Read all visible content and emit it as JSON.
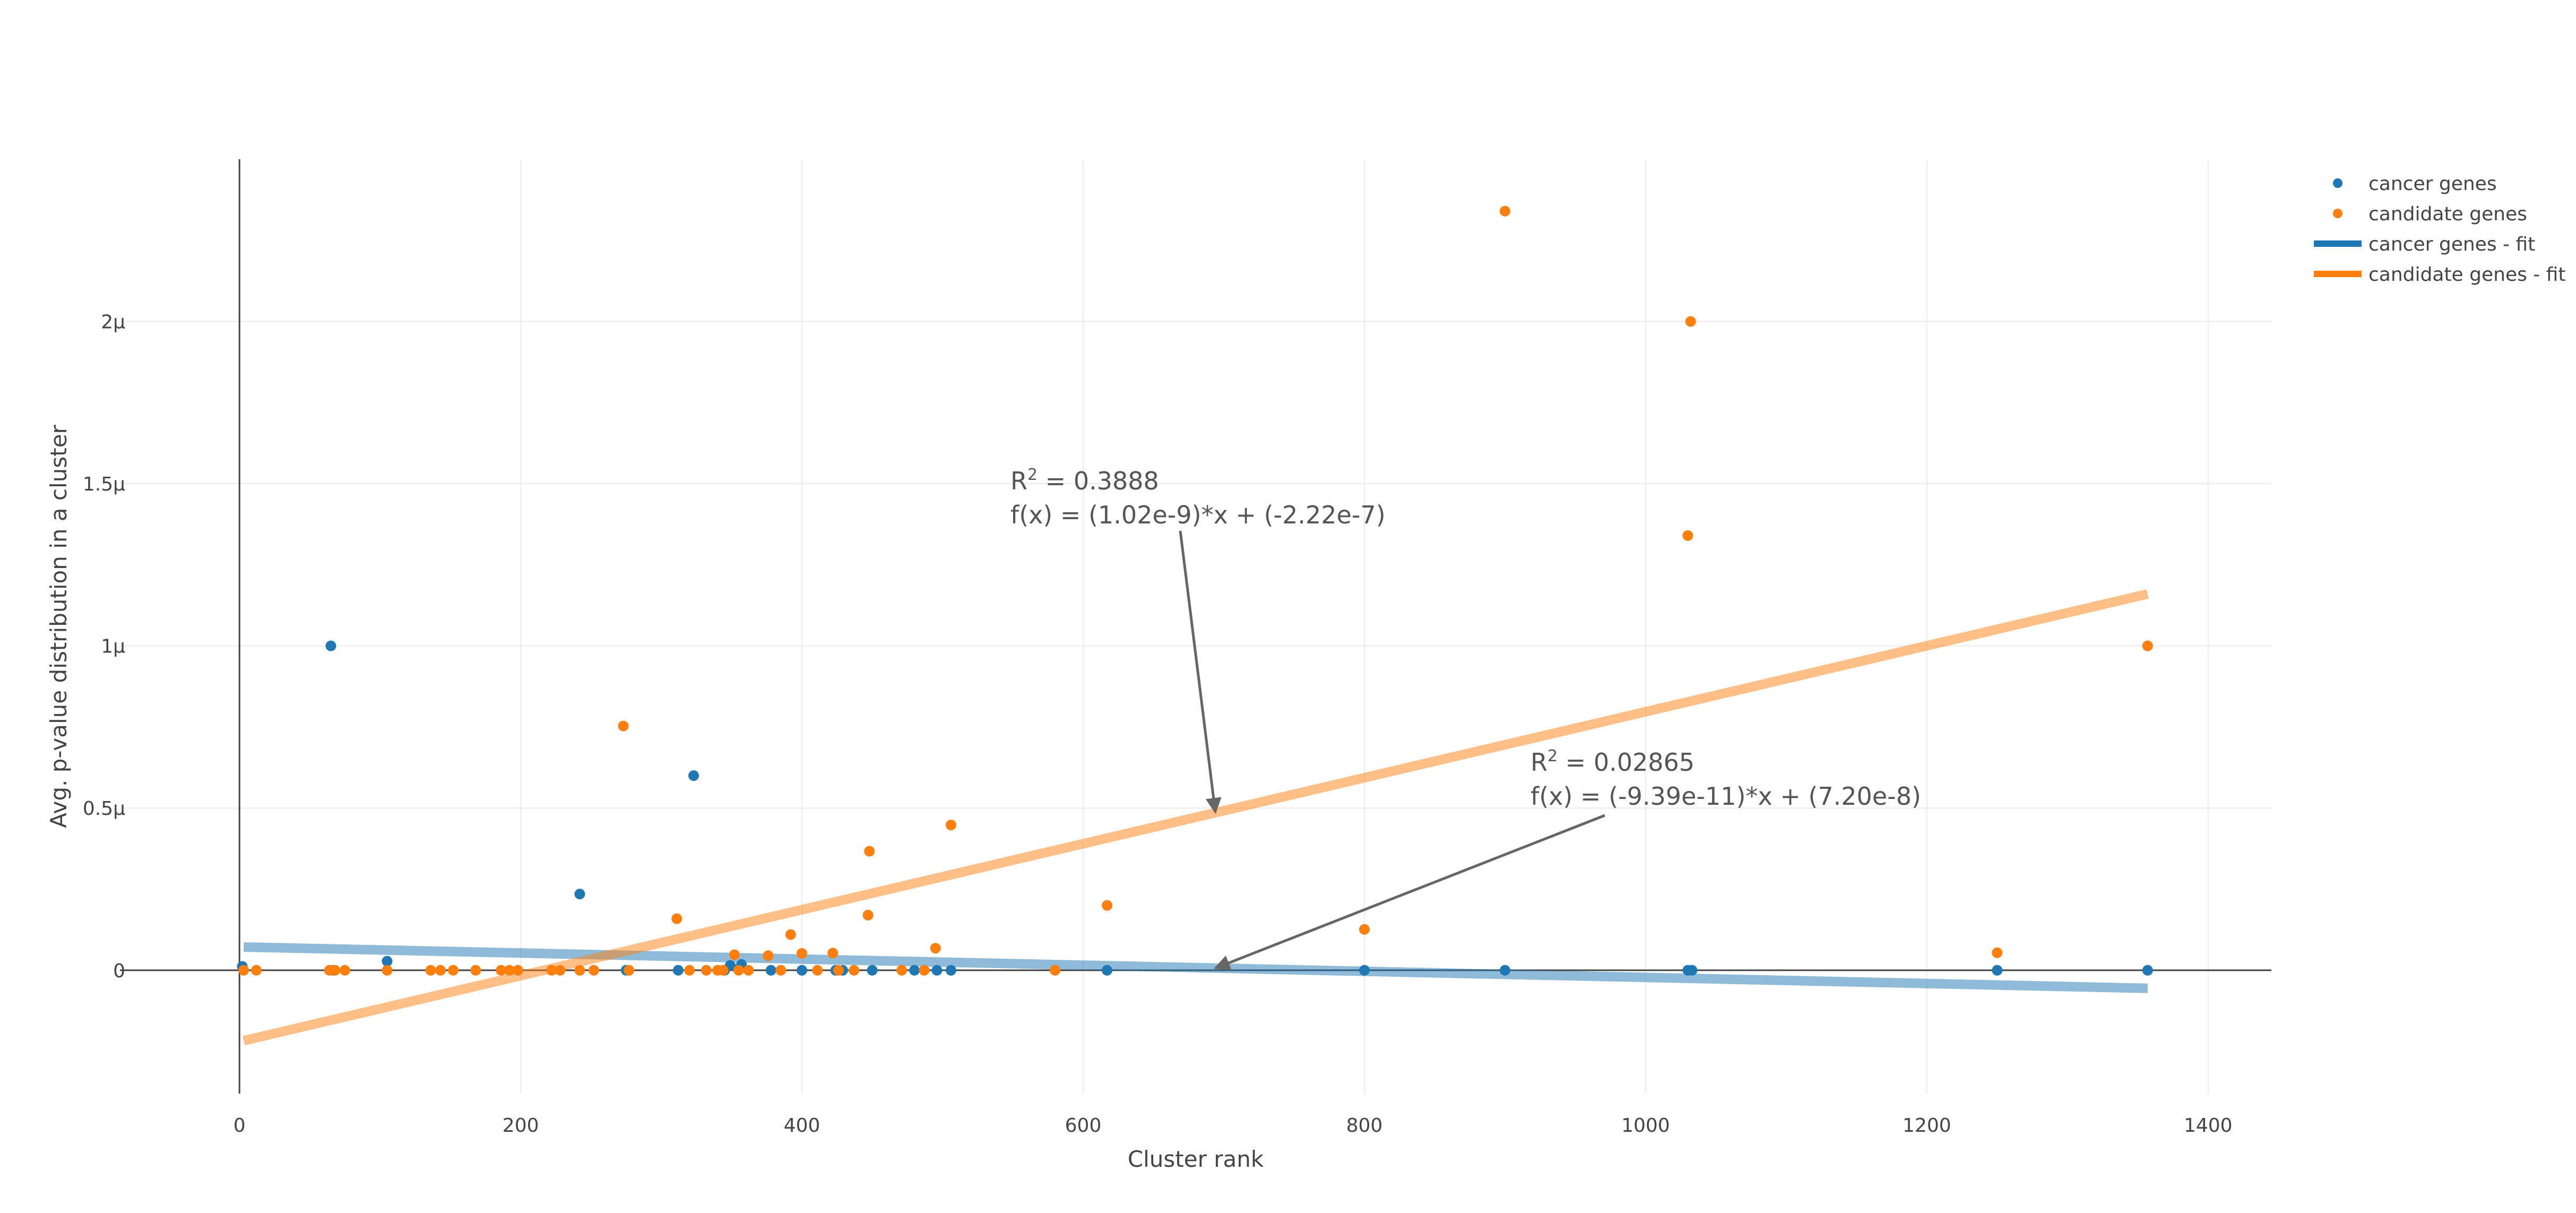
{
  "chart_data": {
    "type": "scatter",
    "xlabel": "Cluster rank",
    "ylabel": "Avg. p-value distribution in a cluster",
    "xlim": [
      -85,
      1445
    ],
    "ylim": [
      -3.8e-07,
      2.5e-06
    ],
    "x_ticks": [
      {
        "value": 0,
        "label": "0"
      },
      {
        "value": 200,
        "label": "200"
      },
      {
        "value": 400,
        "label": "400"
      },
      {
        "value": 600,
        "label": "600"
      },
      {
        "value": 800,
        "label": "800"
      },
      {
        "value": 1000,
        "label": "1000"
      },
      {
        "value": 1200,
        "label": "1200"
      },
      {
        "value": 1400,
        "label": "1400"
      }
    ],
    "y_ticks": [
      {
        "value": 0,
        "label": "0"
      },
      {
        "value": 5e-07,
        "label": "0.5μ"
      },
      {
        "value": 1e-06,
        "label": "1μ"
      },
      {
        "value": 1.5e-06,
        "label": "1.5μ"
      },
      {
        "value": 2e-06,
        "label": "2μ"
      }
    ],
    "grid": true,
    "legend_position": "top-right",
    "series": [
      {
        "name": "cancer genes",
        "kind": "markers",
        "color": "#1f77b4",
        "points": [
          [
            2,
            1.2e-08
          ],
          [
            65,
            1e-06
          ],
          [
            67,
            0.0
          ],
          [
            105,
            2.8e-08
          ],
          [
            242,
            2.35e-07
          ],
          [
            275,
            0.0
          ],
          [
            312,
            0.0
          ],
          [
            323,
            6e-07
          ],
          [
            345,
            0.0
          ],
          [
            349,
            1.5e-08
          ],
          [
            355,
            4e-09
          ],
          [
            357,
            1.8e-08
          ],
          [
            378,
            0.0
          ],
          [
            400,
            0.0
          ],
          [
            424,
            0.0
          ],
          [
            429,
            0.0
          ],
          [
            450,
            0.0
          ],
          [
            480,
            0.0
          ],
          [
            496,
            0.0
          ],
          [
            506,
            0.0
          ],
          [
            617,
            0.0
          ],
          [
            800,
            0.0
          ],
          [
            900,
            0.0
          ],
          [
            1030,
            0.0
          ],
          [
            1033,
            0.0
          ],
          [
            1250,
            0.0
          ],
          [
            1357,
            0.0
          ]
        ]
      },
      {
        "name": "candidate genes",
        "kind": "markers",
        "color": "#ff7f0e",
        "points": [
          [
            3,
            0.0
          ],
          [
            12,
            0.0
          ],
          [
            64,
            0.0
          ],
          [
            68,
            0.0
          ],
          [
            75,
            0.0
          ],
          [
            105,
            0.0
          ],
          [
            136,
            0.0
          ],
          [
            143,
            0.0
          ],
          [
            152,
            0.0
          ],
          [
            168,
            0.0
          ],
          [
            186,
            0.0
          ],
          [
            192,
            0.0
          ],
          [
            198,
            0.0
          ],
          [
            222,
            0.0
          ],
          [
            228,
            0.0
          ],
          [
            242,
            0.0
          ],
          [
            252,
            0.0
          ],
          [
            273,
            7.53e-07
          ],
          [
            277,
            0.0
          ],
          [
            311,
            1.59e-07
          ],
          [
            320,
            0.0
          ],
          [
            332,
            0.0
          ],
          [
            340,
            0.0
          ],
          [
            344,
            0.0
          ],
          [
            352,
            4.8e-08
          ],
          [
            355,
            0.0
          ],
          [
            362,
            0.0
          ],
          [
            376,
            4.5e-08
          ],
          [
            385,
            0.0
          ],
          [
            392,
            1.1e-07
          ],
          [
            400,
            5.2e-08
          ],
          [
            411,
            0.0
          ],
          [
            422,
            5.3e-08
          ],
          [
            426,
            0.0
          ],
          [
            437,
            0.0
          ],
          [
            447,
            1.7e-07
          ],
          [
            448,
            3.67e-07
          ],
          [
            471,
            0.0
          ],
          [
            487,
            0.0
          ],
          [
            495,
            6.8e-08
          ],
          [
            506,
            4.48e-07
          ],
          [
            580,
            0.0
          ],
          [
            617,
            2e-07
          ],
          [
            800,
            1.26e-07
          ],
          [
            900,
            2.34e-06
          ],
          [
            1030,
            1.34e-06
          ],
          [
            1032,
            2e-06
          ],
          [
            1250,
            5.4e-08
          ],
          [
            1357,
            1e-06
          ]
        ]
      },
      {
        "name": "cancer genes - fit",
        "kind": "line",
        "color": "#1f77b4",
        "x": [
          3,
          1357
        ],
        "y": [
          7.17e-08,
          -5.55e-08
        ]
      },
      {
        "name": "candidate genes - fit",
        "kind": "line",
        "color": "#ff7f0e",
        "x": [
          3,
          1357
        ],
        "y": [
          -2.17e-07,
          1.16e-06
        ]
      }
    ],
    "annotations": [
      {
        "r2_label": "R",
        "r2_sup": "2",
        "r2_value": " = 0.3888",
        "formula": "f(x) = (1.02e-9)*x + (-2.22e-7)",
        "arrow_target": [
          694,
          4.87e-07
        ]
      },
      {
        "r2_label": "R",
        "r2_sup": "2",
        "r2_value": " = 0.02865",
        "formula": "f(x) = (-9.39e-11)*x + (7.20e-8)",
        "arrow_target": [
          694,
          6.5e-09
        ]
      }
    ]
  },
  "legend": {
    "items": [
      {
        "label": "cancer genes",
        "kind": "marker",
        "color": "#1f77b4"
      },
      {
        "label": "candidate genes",
        "kind": "marker",
        "color": "#ff7f0e"
      },
      {
        "label": "cancer genes - fit",
        "kind": "line",
        "color": "#1f77b4"
      },
      {
        "label": "candidate genes - fit",
        "kind": "line",
        "color": "#ff7f0e"
      }
    ]
  }
}
